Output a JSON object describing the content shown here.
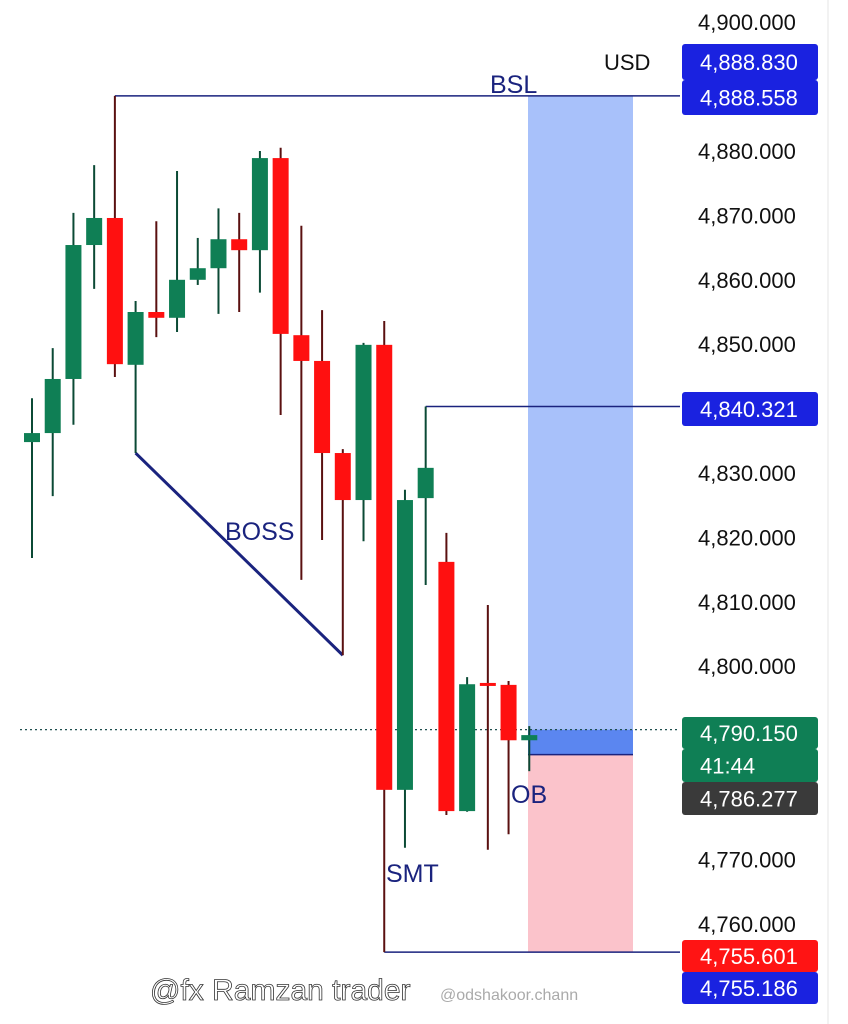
{
  "chart_data": {
    "type": "candlestick",
    "currency": "USD",
    "ylim": [
      4750,
      4903
    ],
    "y_ticks": [
      "4,900.000",
      "4,880.000",
      "4,870.000",
      "4,860.000",
      "4,850.000",
      "4,830.000",
      "4,820.000",
      "4,810.000",
      "4,800.000",
      "4,770.000",
      "4,760.000"
    ],
    "y_tick_values": [
      4900,
      4880,
      4870,
      4860,
      4850,
      4830,
      4820,
      4810,
      4800,
      4770,
      4760
    ],
    "candles": [
      {
        "o": 4834.8,
        "h": 4841.6,
        "l": 4816.8,
        "c": 4836.2
      },
      {
        "o": 4836.2,
        "h": 4849.4,
        "l": 4826.4,
        "c": 4844.6
      },
      {
        "o": 4844.6,
        "h": 4870.4,
        "l": 4837.5,
        "c": 4865.4
      },
      {
        "o": 4865.4,
        "h": 4877.8,
        "l": 4858.6,
        "c": 4869.6
      },
      {
        "o": 4869.6,
        "h": 4888.558,
        "l": 4844.9,
        "c": 4846.9
      },
      {
        "o": 4846.8,
        "h": 4856.7,
        "l": 4833.1,
        "c": 4855.0
      },
      {
        "o": 4855.0,
        "h": 4869.1,
        "l": 4851.1,
        "c": 4854.1
      },
      {
        "o": 4854.1,
        "h": 4876.9,
        "l": 4851.9,
        "c": 4860.0
      },
      {
        "o": 4860.0,
        "h": 4866.5,
        "l": 4859.2,
        "c": 4861.8
      },
      {
        "o": 4861.8,
        "h": 4871.1,
        "l": 4854.7,
        "c": 4866.3
      },
      {
        "o": 4866.3,
        "h": 4870.4,
        "l": 4855.0,
        "c": 4864.6
      },
      {
        "o": 4864.6,
        "h": 4880.0,
        "l": 4858.0,
        "c": 4878.9
      },
      {
        "o": 4878.9,
        "h": 4880.5,
        "l": 4839.0,
        "c": 4851.6
      },
      {
        "o": 4851.4,
        "h": 4868.4,
        "l": 4813.4,
        "c": 4847.4
      },
      {
        "o": 4847.4,
        "h": 4855.3,
        "l": 4819.6,
        "c": 4833.1
      },
      {
        "o": 4833.1,
        "h": 4833.7,
        "l": 4801.7,
        "c": 4825.8
      },
      {
        "o": 4825.8,
        "h": 4850.2,
        "l": 4819.4,
        "c": 4849.9
      },
      {
        "o": 4849.9,
        "h": 4853.6,
        "l": 4755.601,
        "c": 4780.8
      },
      {
        "o": 4780.8,
        "h": 4827.4,
        "l": 4771.8,
        "c": 4825.8
      },
      {
        "o": 4826.1,
        "h": 4840.321,
        "l": 4812.6,
        "c": 4830.8
      },
      {
        "o": 4816.2,
        "h": 4820.7,
        "l": 4776.9,
        "c": 4777.5
      },
      {
        "o": 4777.5,
        "h": 4798.3,
        "l": 4777.4,
        "c": 4797.2
      },
      {
        "o": 4797.4,
        "h": 4809.5,
        "l": 4771.5,
        "c": 4797.2
      },
      {
        "o": 4797.1,
        "h": 4797.7,
        "l": 4773.9,
        "c": 4788.5
      },
      {
        "o": 4788.5,
        "h": 4790.7,
        "l": 4783.7,
        "c": 4789.3
      }
    ],
    "colors": {
      "up": "#0f7f55",
      "down": "#ff1010",
      "wick_up": "#0b4a35",
      "wick_down": "#5a1010",
      "annotation": "#1a237e",
      "target_zone": "#a8c1fa",
      "entry_zone": "#5b86f0",
      "stop_zone": "#fbc3cb"
    },
    "annotations": [
      {
        "text": "BSL",
        "level": 4888.558
      },
      {
        "text": "BOSS"
      },
      {
        "text": "SMT",
        "level": 4755.601
      },
      {
        "text": "OB"
      }
    ],
    "levels": {
      "bsl": 4888.558,
      "swing_high": 4840.321,
      "smt_low": 4755.601,
      "current": 4790.15
    },
    "position": {
      "target": 4888.558,
      "entry": 4786.277,
      "current": 4790.15,
      "stop": 4755.601
    },
    "price_labels": [
      {
        "text": "4,888.830",
        "bg": "#1a22e0"
      },
      {
        "text": "4,888.558",
        "bg": "#1a22e0"
      },
      {
        "text": "4,840.321",
        "bg": "#1a22e0"
      },
      {
        "text": "4,790.150",
        "bg": "#0f7f55"
      },
      {
        "text": "41:44",
        "bg": "#0f7f55"
      },
      {
        "text": "4,786.277",
        "bg": "#3a3a3a"
      },
      {
        "text": "4,755.601",
        "bg": "#ff1414"
      },
      {
        "text": "4,755.186",
        "bg": "#1a22e0"
      }
    ]
  },
  "watermark": {
    "main": "@fx Ramzan trader",
    "secondary": "@odshakoor.chann"
  }
}
